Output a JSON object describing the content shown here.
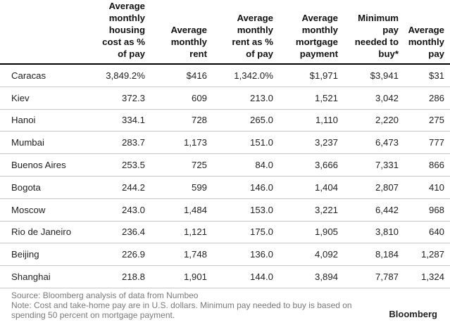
{
  "headers": [
    "",
    "Average\nmonthly\nhousing\ncost as %\nof pay",
    "Average\nmonthly\nrent",
    "Average\nmonthly\nrent as %\nof pay",
    "Average\nmonthly\nmortgage\npayment",
    "Minimum\npay\nneeded to\nbuy*",
    "Average\nmonthly\npay"
  ],
  "rows": [
    [
      "Caracas",
      "3,849.2%",
      "$416",
      "1,342.0%",
      "$1,971",
      "$3,941",
      "$31"
    ],
    [
      "Kiev",
      "372.3",
      "609",
      "213.0",
      "1,521",
      "3,042",
      "286"
    ],
    [
      "Hanoi",
      "334.1",
      "728",
      "265.0",
      "1,110",
      "2,220",
      "275"
    ],
    [
      "Mumbai",
      "283.7",
      "1,173",
      "151.0",
      "3,237",
      "6,473",
      "777"
    ],
    [
      "Buenos Aires",
      "253.5",
      "725",
      "84.0",
      "3,666",
      "7,331",
      "866"
    ],
    [
      "Bogota",
      "244.2",
      "599",
      "146.0",
      "1,404",
      "2,807",
      "410"
    ],
    [
      "Moscow",
      "243.0",
      "1,484",
      "153.0",
      "3,221",
      "6,442",
      "968"
    ],
    [
      "Rio de Janeiro",
      "236.4",
      "1,121",
      "175.0",
      "1,905",
      "3,810",
      "640"
    ],
    [
      "Beijing",
      "226.9",
      "1,748",
      "136.0",
      "4,092",
      "8,184",
      "1,287"
    ],
    [
      "Shanghai",
      "218.8",
      "1,901",
      "144.0",
      "3,894",
      "7,787",
      "1,324"
    ]
  ],
  "footer": {
    "source": "Source: Bloomberg analysis of data from Numbeo",
    "note": "Note: Cost and take-home pay are in U.S. dollars. Minimum pay needed to buy is based on spending 50 percent on mortgage payment."
  },
  "brand": "Bloomberg"
}
